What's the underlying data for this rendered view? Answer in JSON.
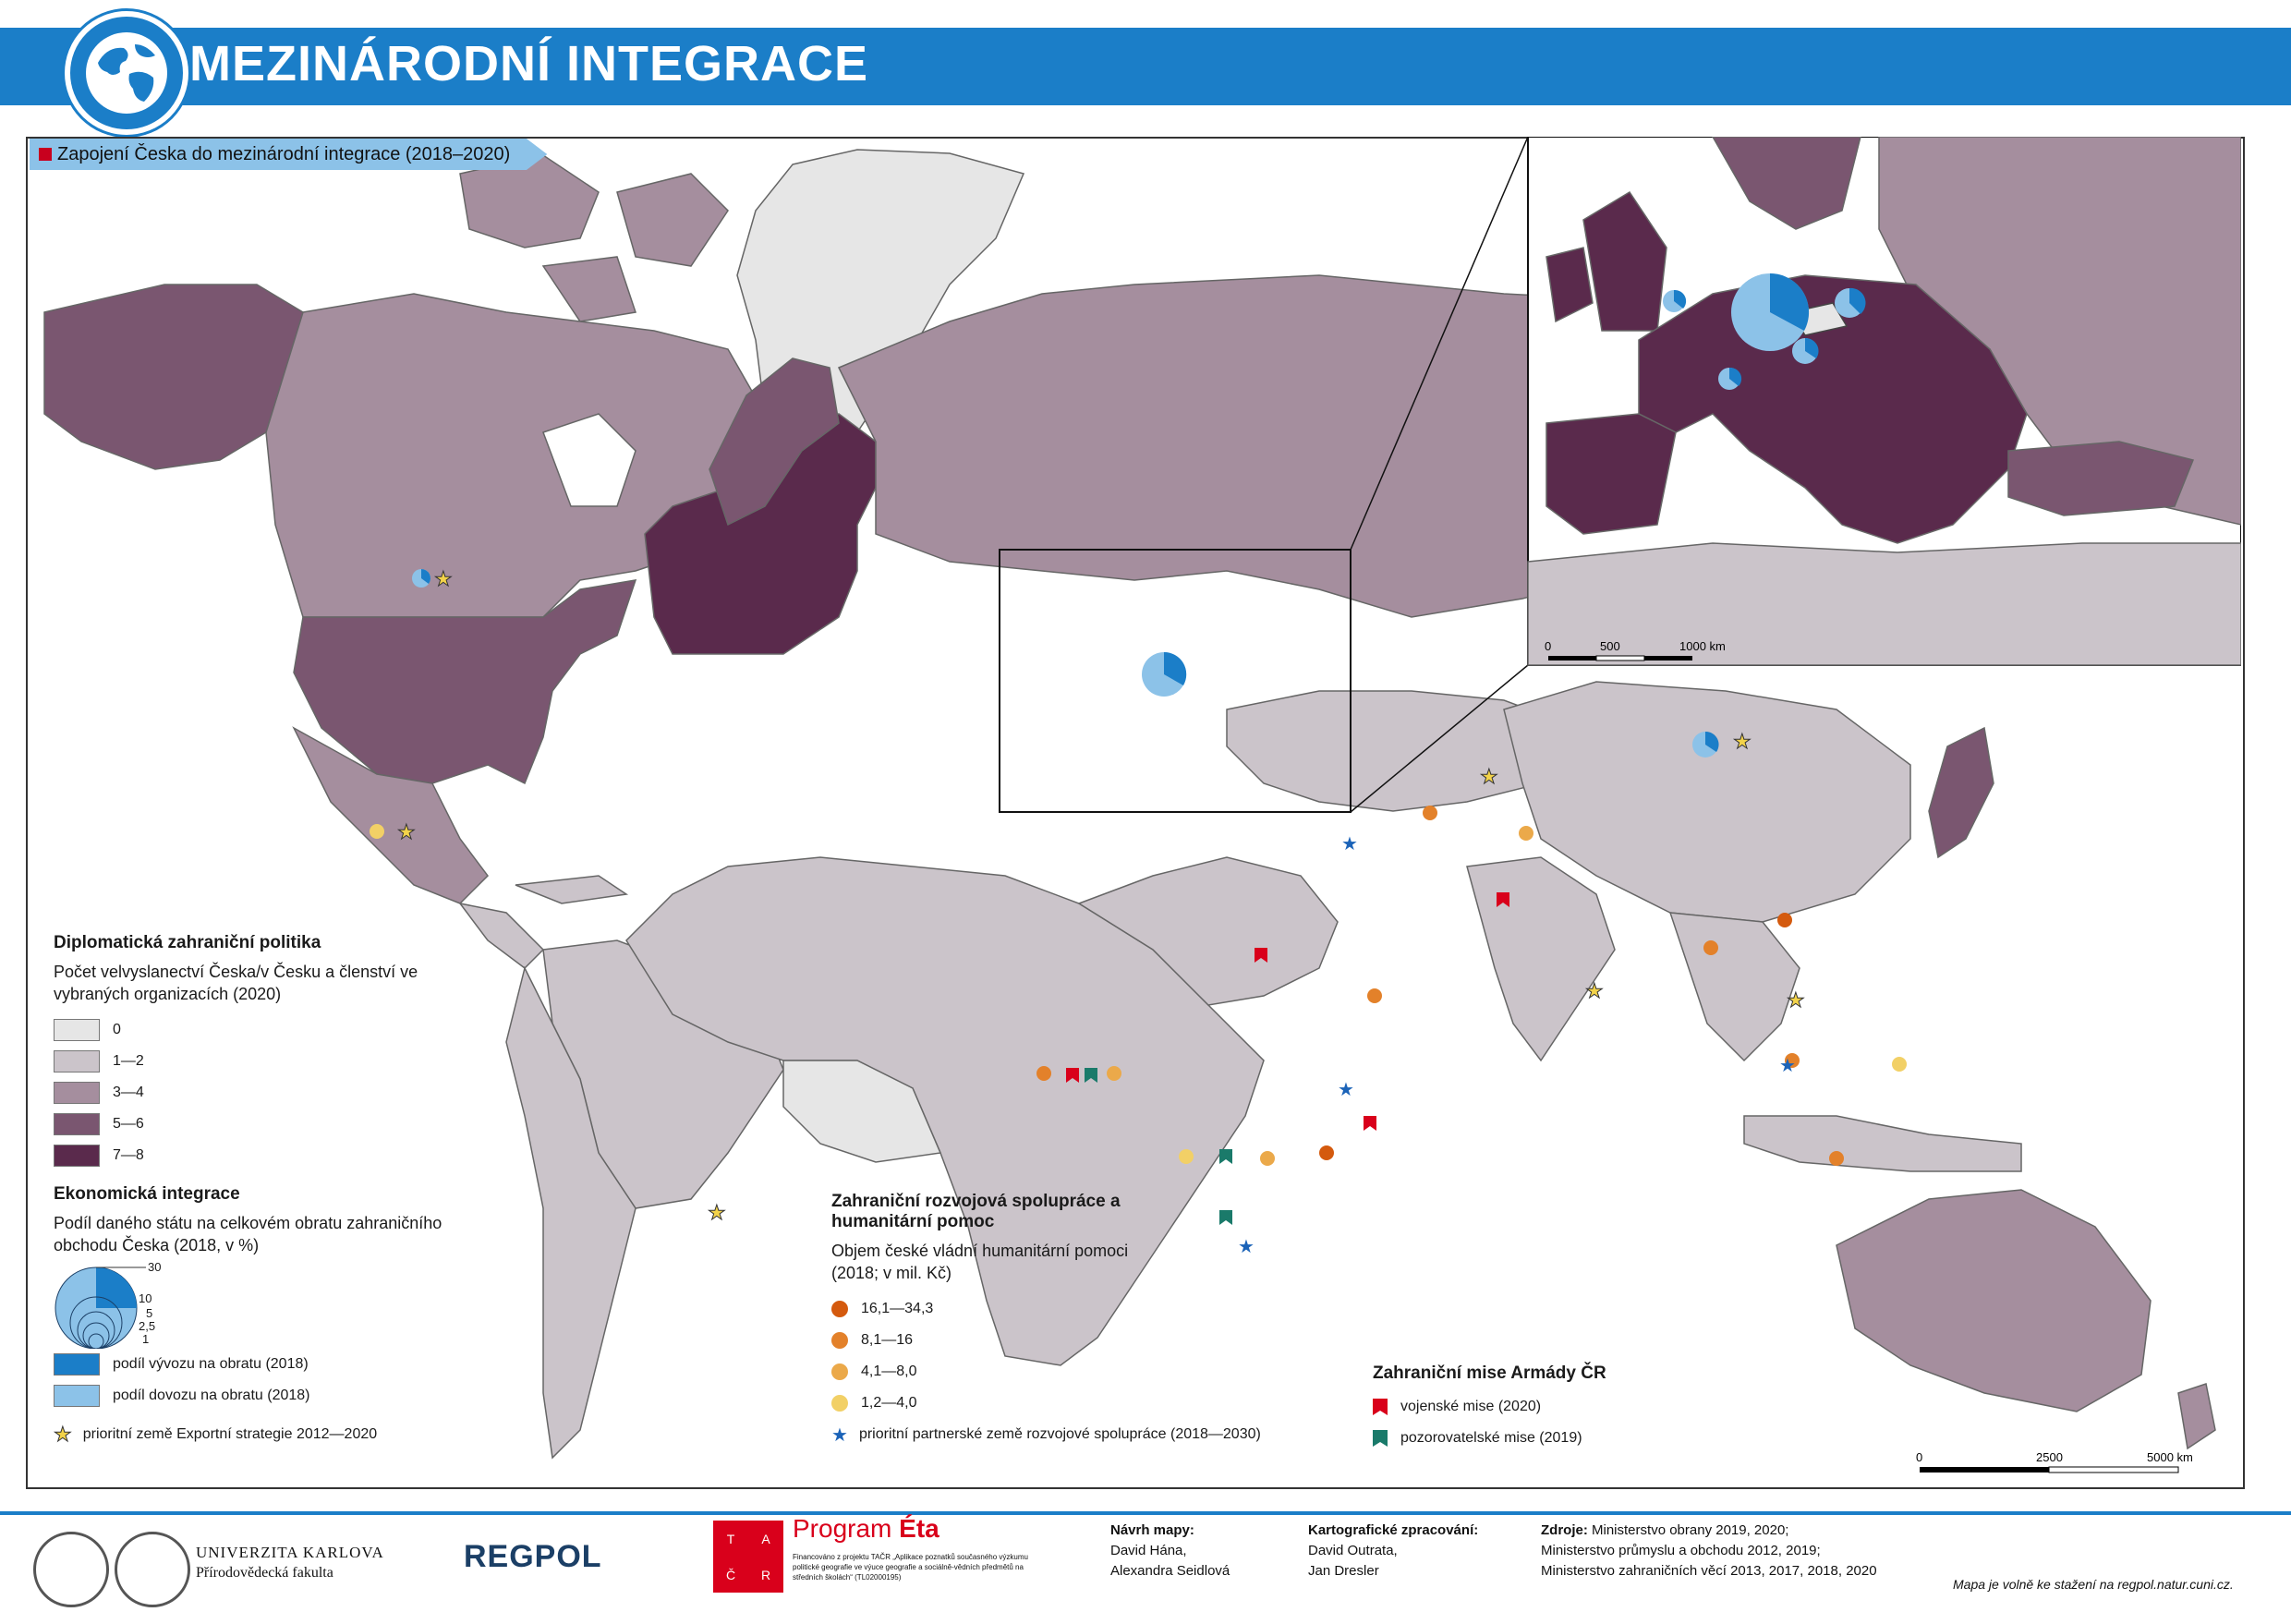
{
  "header": {
    "title": "MEZINÁRODNÍ INTEGRACE",
    "subtitle": "Zapojení Česka do mezinárodní integrace (2018–2020)"
  },
  "colors": {
    "brand_blue": "#1b7ec8",
    "class_0": "#e6e6e6",
    "class_1_2": "#cbc4ca",
    "class_3_4": "#a58e9e",
    "class_5_6": "#7a5670",
    "class_7_8": "#5a2a4c",
    "export_blue": "#1b7ec8",
    "import_blue": "#8cc2e8",
    "aid_1": "#d45a0e",
    "aid_2": "#e3812a",
    "aid_3": "#eba94a",
    "aid_4": "#f2d066",
    "military_red": "#d9001b",
    "observer_green": "#1a7a6a",
    "priority_star": "#f3d34a",
    "partner_star": "#1b63b8"
  },
  "legend_diplomacy": {
    "heading": "Diplomatická zahraniční politika",
    "subtitle": "Počet velvyslanectví Česka/v Česku a členství ve vybraných organizacích (2020)",
    "classes": [
      {
        "label": "0",
        "color": "#e6e6e6"
      },
      {
        "label": "1—2",
        "color": "#cbc4ca"
      },
      {
        "label": "3—4",
        "color": "#a58e9e"
      },
      {
        "label": "5—6",
        "color": "#7a5670"
      },
      {
        "label": "7—8",
        "color": "#5a2a4c"
      }
    ]
  },
  "legend_economy": {
    "heading": "Ekonomická integrace",
    "subtitle": "Podíl daného státu na celkovém obratu zahraničního obchodu Česka (2018, v %)",
    "circle_values": [
      "30",
      "10",
      "5",
      "2,5",
      "1"
    ],
    "export_label": "podíl vývozu na obratu (2018)",
    "import_label": "podíl dovozu na obratu (2018)",
    "priority_label": "prioritní země Exportní strategie 2012—2020"
  },
  "legend_aid": {
    "heading": "Zahraniční rozvojová spolupráce a humanitární pomoc",
    "subtitle": "Objem české vládní humanitární pomoci (2018; v mil. Kč)",
    "classes": [
      "16,1—34,3",
      "8,1—16",
      "4,1—8,0",
      "1,2—4,0"
    ],
    "partner_label": "prioritní partnerské země rozvojové spolupráce (2018—2030)"
  },
  "legend_army": {
    "heading": "Zahraniční mise Armády ČR",
    "military_label": "vojenské mise (2020)",
    "observer_label": "pozorovatelské mise (2019)"
  },
  "scale_main": {
    "labels": [
      "0",
      "2500",
      "5000 km"
    ]
  },
  "scale_inset": {
    "labels": [
      "0",
      "500",
      "1000 km"
    ]
  },
  "footer": {
    "university": "UNIVERZITA KARLOVA",
    "faculty": "Přírodovědecká fakulta",
    "regpol": "REGPOL",
    "tacr_letters": [
      "T",
      "A",
      "Č",
      "R"
    ],
    "program": "Program",
    "program_name": "Éta",
    "program_note": "Financováno z projektu TAČR „Aplikace poznatků současného výzkumu politické geografie ve výuce geografie a sociálně-vědních předmětů na středních školách“ (TL02000195)",
    "design_label": "Návrh mapy:",
    "design_names": [
      "David Hána,",
      "Alexandra Seidlová"
    ],
    "carto_label": "Kartografické zpracování:",
    "carto_names": [
      "David Outrata,",
      "Jan Dresler"
    ],
    "sources_label": "Zdroje:",
    "sources": [
      "Ministerstvo obrany 2019, 2020;",
      "Ministerstvo průmyslu a obchodu 2012, 2019;",
      "Ministerstvo zahraničních věcí 2013, 2017, 2018, 2020"
    ],
    "download_note": "Mapa je volně ke stažení na regpol.natur.cuni.cz."
  }
}
